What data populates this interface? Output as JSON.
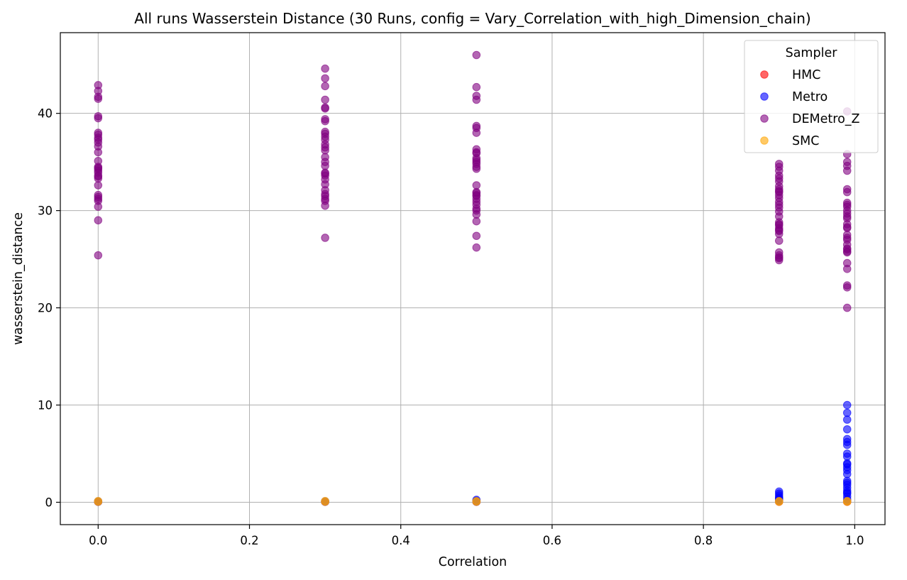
{
  "chart_data": {
    "type": "scatter",
    "title": "All runs Wasserstein Distance (30 Runs, config = Vary_Correlation_with_high_Dimension_chain)",
    "xlabel": "Correlation",
    "ylabel": "wasserstein_distance",
    "xlim": [
      -0.05,
      1.04
    ],
    "ylim": [
      -2.3,
      48.3
    ],
    "xticks": [
      0.0,
      0.2,
      0.4,
      0.6,
      0.8,
      1.0
    ],
    "xtick_labels": [
      "0.0",
      "0.2",
      "0.4",
      "0.6",
      "0.8",
      "1.0"
    ],
    "yticks": [
      0,
      10,
      20,
      30,
      40
    ],
    "ytick_labels": [
      "0",
      "10",
      "20",
      "30",
      "40"
    ],
    "grid": true,
    "legend": {
      "title": "Sampler",
      "placement": "top-right"
    },
    "series": [
      {
        "name": "HMC",
        "color": "#ff0000",
        "x": [
          0.0,
          0.3,
          0.5,
          0.9,
          0.99
        ],
        "y": [
          0.05,
          0.05,
          0.05,
          0.05,
          0.05
        ]
      },
      {
        "name": "Metro",
        "color": "#0000ff",
        "x": [
          0.0,
          0.0,
          0.3,
          0.3,
          0.5,
          0.5,
          0.5,
          0.9,
          0.9,
          0.9,
          0.9,
          0.9,
          0.9,
          0.9,
          0.9,
          0.99,
          0.99,
          0.99,
          0.99,
          0.99,
          0.99,
          0.99,
          0.99,
          0.99,
          0.99,
          0.99,
          0.99,
          0.99,
          0.99,
          0.99,
          0.99,
          0.99,
          0.99,
          0.99,
          0.99,
          0.99,
          0.99,
          0.99,
          0.99
        ],
        "y": [
          0.05,
          0.1,
          0.05,
          0.1,
          0.05,
          0.15,
          0.25,
          0.1,
          0.2,
          0.3,
          0.4,
          0.5,
          0.7,
          0.9,
          1.1,
          0.1,
          0.3,
          0.6,
          0.9,
          1.2,
          1.5,
          1.8,
          2.0,
          2.2,
          2.9,
          3.3,
          3.6,
          3.9,
          4.0,
          4.7,
          5.0,
          5.9,
          6.2,
          6.5,
          7.5,
          8.5,
          9.2,
          10.0,
          1.0
        ]
      },
      {
        "name": "DEMetro_Z",
        "color": "#800080",
        "x": [
          0.0,
          0.0,
          0.0,
          0.0,
          0.0,
          0.0,
          0.0,
          0.0,
          0.0,
          0.0,
          0.0,
          0.0,
          0.0,
          0.0,
          0.0,
          0.0,
          0.0,
          0.0,
          0.0,
          0.0,
          0.0,
          0.0,
          0.0,
          0.0,
          0.0,
          0.0,
          0.0,
          0.0,
          0.0,
          0.0,
          0.3,
          0.3,
          0.3,
          0.3,
          0.3,
          0.3,
          0.3,
          0.3,
          0.3,
          0.3,
          0.3,
          0.3,
          0.3,
          0.3,
          0.3,
          0.3,
          0.3,
          0.3,
          0.3,
          0.3,
          0.3,
          0.3,
          0.3,
          0.3,
          0.3,
          0.3,
          0.3,
          0.3,
          0.3,
          0.3,
          0.5,
          0.5,
          0.5,
          0.5,
          0.5,
          0.5,
          0.5,
          0.5,
          0.5,
          0.5,
          0.5,
          0.5,
          0.5,
          0.5,
          0.5,
          0.5,
          0.5,
          0.5,
          0.5,
          0.5,
          0.5,
          0.5,
          0.5,
          0.5,
          0.5,
          0.5,
          0.5,
          0.5,
          0.5,
          0.5,
          0.9,
          0.9,
          0.9,
          0.9,
          0.9,
          0.9,
          0.9,
          0.9,
          0.9,
          0.9,
          0.9,
          0.9,
          0.9,
          0.9,
          0.9,
          0.9,
          0.9,
          0.9,
          0.9,
          0.9,
          0.9,
          0.9,
          0.9,
          0.9,
          0.9,
          0.9,
          0.9,
          0.9,
          0.9,
          0.9,
          0.99,
          0.99,
          0.99,
          0.99,
          0.99,
          0.99,
          0.99,
          0.99,
          0.99,
          0.99,
          0.99,
          0.99,
          0.99,
          0.99,
          0.99,
          0.99,
          0.99,
          0.99,
          0.99,
          0.99,
          0.99,
          0.99,
          0.99,
          0.99,
          0.99,
          0.99,
          0.99,
          0.99,
          0.99,
          0.99
        ],
        "y": [
          42.9,
          42.3,
          41.7,
          41.5,
          39.7,
          39.5,
          38.0,
          37.8,
          37.5,
          37.3,
          36.6,
          36.0,
          35.1,
          34.5,
          34.3,
          34.1,
          33.9,
          33.6,
          33.3,
          32.6,
          31.6,
          31.4,
          31.2,
          30.4,
          29.0,
          25.4,
          34.4,
          37.0,
          33.5,
          31.0,
          44.6,
          43.6,
          42.8,
          41.4,
          40.6,
          40.5,
          39.4,
          39.2,
          38.1,
          37.9,
          37.6,
          37.3,
          36.8,
          36.5,
          35.0,
          34.6,
          33.9,
          33.6,
          33.2,
          32.7,
          32.1,
          31.7,
          31.5,
          31.2,
          30.5,
          27.2,
          35.5,
          36.2,
          33.8,
          31.0,
          46.0,
          42.7,
          41.8,
          41.4,
          38.7,
          38.5,
          38.0,
          36.3,
          35.9,
          35.4,
          35.0,
          34.5,
          34.3,
          32.6,
          31.9,
          31.8,
          31.5,
          30.9,
          30.6,
          30.0,
          29.6,
          28.9,
          27.4,
          26.2,
          36.0,
          35.2,
          31.6,
          30.2,
          34.8,
          31.2,
          34.8,
          34.5,
          34.1,
          33.3,
          33.0,
          32.5,
          32.2,
          31.9,
          31.3,
          30.9,
          30.3,
          29.4,
          28.8,
          28.5,
          28.2,
          27.9,
          27.6,
          26.9,
          25.7,
          25.4,
          25.2,
          24.9,
          32.0,
          30.6,
          28.6,
          28.0,
          31.6,
          33.6,
          25.1,
          29.9,
          40.2,
          35.8,
          35.0,
          34.6,
          34.1,
          32.2,
          31.9,
          30.8,
          30.4,
          30.0,
          29.7,
          29.2,
          28.6,
          28.3,
          27.2,
          27.0,
          26.5,
          26.0,
          25.8,
          24.6,
          24.0,
          22.3,
          22.1,
          20.0,
          28.2,
          26.1,
          30.6,
          29.4,
          27.5,
          25.7
        ]
      },
      {
        "name": "SMC",
        "color": "#ffa500",
        "x": [
          0.0,
          0.0,
          0.3,
          0.3,
          0.5,
          0.5,
          0.9,
          0.9,
          0.99,
          0.99
        ],
        "y": [
          0.05,
          0.12,
          0.05,
          0.12,
          0.05,
          0.12,
          0.05,
          0.12,
          0.05,
          0.12
        ]
      }
    ]
  }
}
